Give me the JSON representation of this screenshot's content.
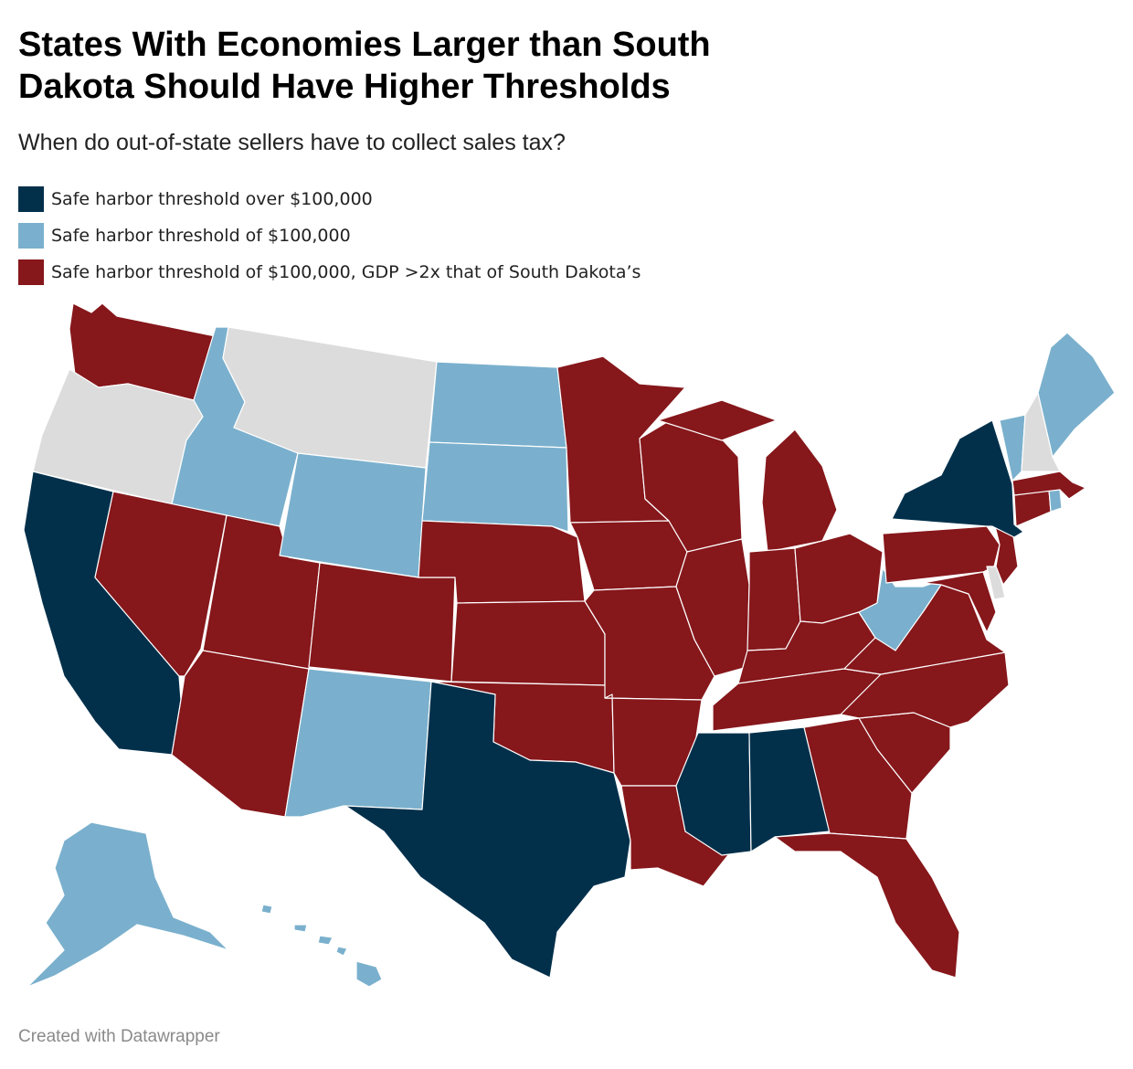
{
  "title": "States With Economies Larger than South Dakota Should Have Higher Thresholds",
  "subtitle": "When do out-of-state sellers have to collect sales tax?",
  "legend": [
    {
      "label": "Safe harbor threshold over $100,000",
      "color": "#02304b"
    },
    {
      "label": "Safe harbor threshold of $100,000",
      "color": "#7ab0cd"
    },
    {
      "label": "Safe harbor threshold of $100,000, GDP >2x that of South Dakota’s",
      "color": "#86171b"
    }
  ],
  "no_data_color": "#dcdcdc",
  "state_categories": {
    "over": [
      "CA",
      "TX",
      "NY",
      "MS",
      "AL"
    ],
    "equal": [
      "ID",
      "WY",
      "ND",
      "SD",
      "NM",
      "WV",
      "VT",
      "ME",
      "RI",
      "AK",
      "HI"
    ],
    "equal_gdp": [
      "WA",
      "NV",
      "UT",
      "AZ",
      "CO",
      "NE",
      "KS",
      "OK",
      "MN",
      "IA",
      "MO",
      "AR",
      "LA",
      "WI",
      "IL",
      "MI",
      "IN",
      "OH",
      "KY",
      "TN",
      "GA",
      "FL",
      "SC",
      "NC",
      "VA",
      "MD",
      "PA",
      "NJ",
      "CT",
      "MA"
    ],
    "none": [
      "OR",
      "MT",
      "NH",
      "DE"
    ]
  },
  "footer": "Created with Datawrapper"
}
